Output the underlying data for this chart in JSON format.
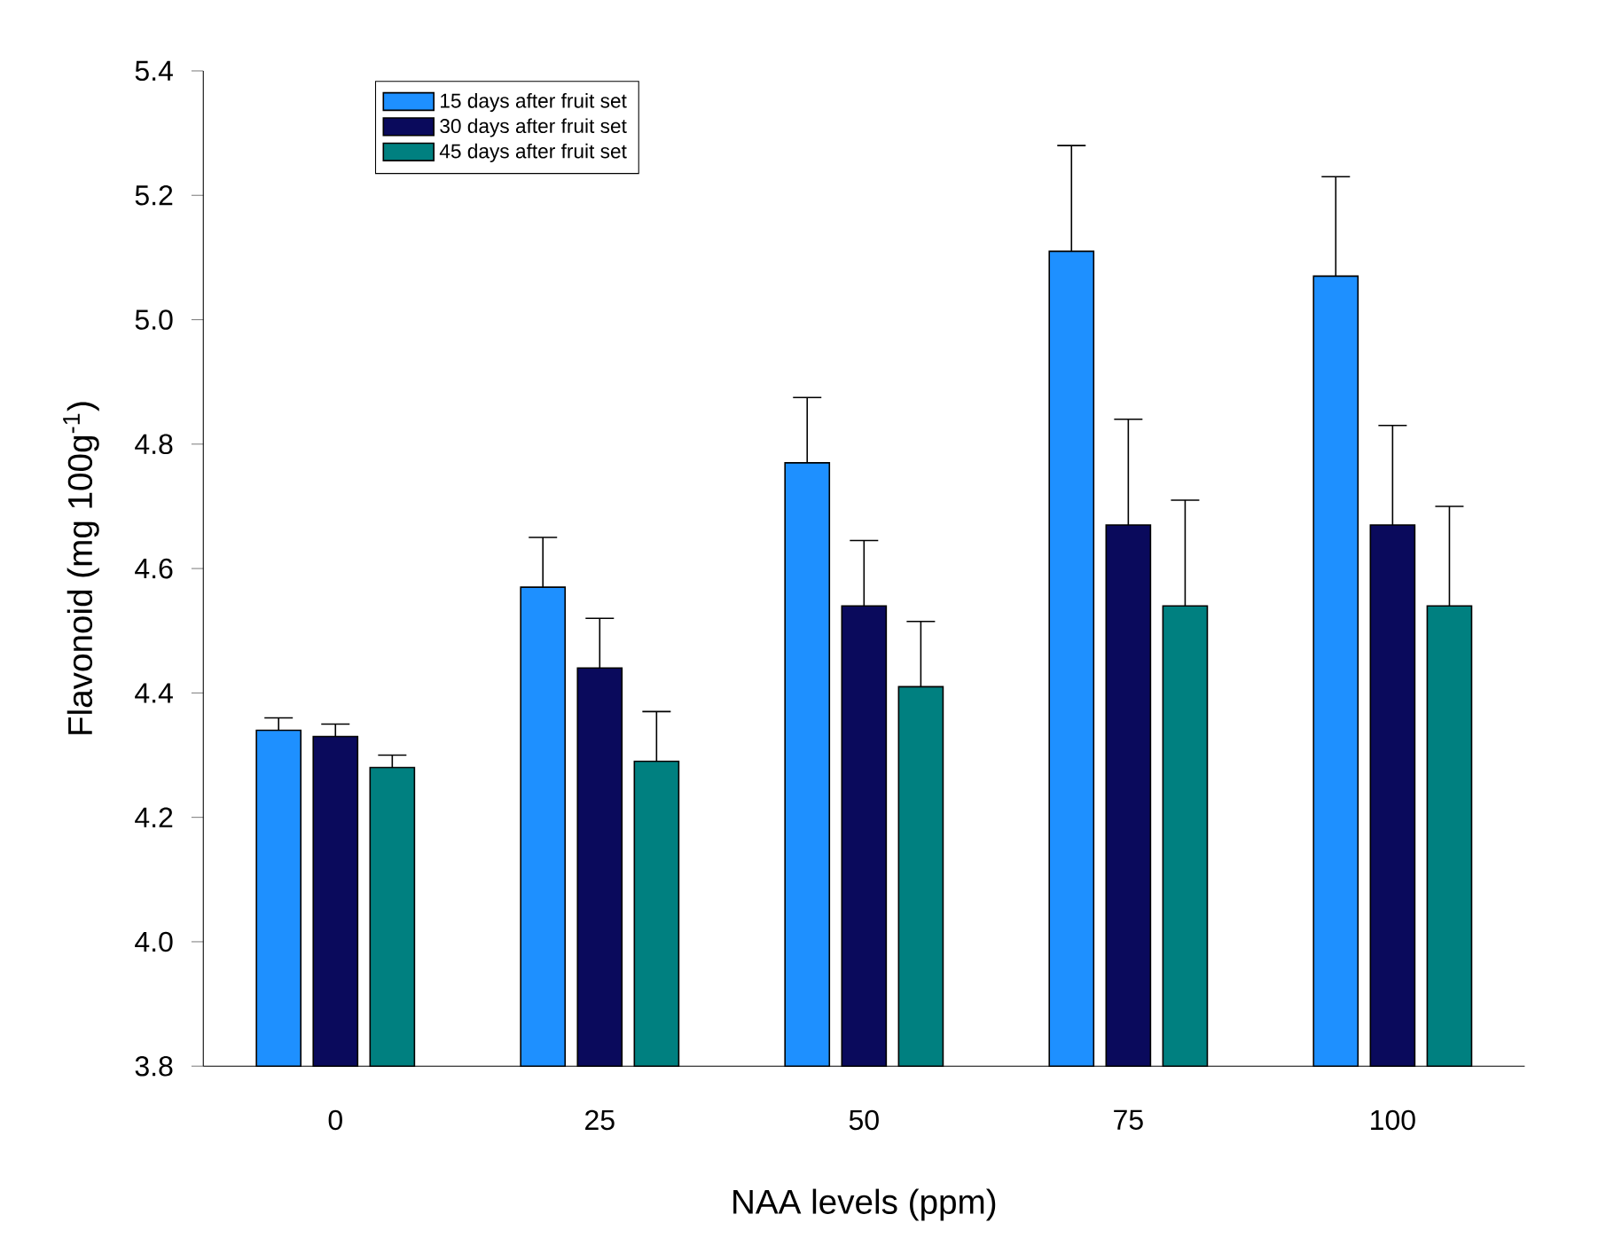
{
  "chart_data": {
    "type": "bar",
    "xlabel": "NAA levels (ppm)",
    "ylabel": "Flavonoid (mg 100g$^{-1}$)",
    "categories": [
      "0",
      "25",
      "50",
      "75",
      "100"
    ],
    "series": [
      {
        "name": "15 days after fruit set",
        "color": "#1e90ff",
        "values": [
          4.34,
          4.57,
          4.77,
          5.11,
          5.07
        ],
        "errors": [
          [
            4.34,
            4.36
          ],
          [
            4.57,
            4.65
          ],
          [
            4.77,
            4.875
          ],
          [
            5.11,
            5.28
          ],
          [
            5.07,
            5.23
          ]
        ]
      },
      {
        "name": "30 days after fruit set",
        "color": "#0a0a5c",
        "values": [
          4.33,
          4.44,
          4.54,
          4.67,
          4.67
        ],
        "errors": [
          [
            4.33,
            4.35
          ],
          [
            4.44,
            4.52
          ],
          [
            4.54,
            4.645
          ],
          [
            4.67,
            4.84
          ],
          [
            4.67,
            4.83
          ]
        ]
      },
      {
        "name": "45 days after fruit set",
        "color": "#008080",
        "values": [
          4.28,
          4.29,
          4.41,
          4.54,
          4.54
        ],
        "errors": [
          [
            4.28,
            4.3
          ],
          [
            4.29,
            4.37
          ],
          [
            4.41,
            4.515
          ],
          [
            4.54,
            4.71
          ],
          [
            4.54,
            4.7
          ]
        ]
      }
    ],
    "ylim": [
      3.8,
      5.4
    ],
    "yticks": [
      {
        "value": 3.8,
        "label": "3.8"
      },
      {
        "value": 4.0,
        "label": "4.0"
      },
      {
        "value": 4.2,
        "label": "4.2"
      },
      {
        "value": 4.4,
        "label": "4.4"
      },
      {
        "value": 4.6,
        "label": "4.6"
      },
      {
        "value": 4.8,
        "label": "4.8"
      },
      {
        "value": 5.0,
        "label": "5.0"
      },
      {
        "value": 5.2,
        "label": "5.2"
      },
      {
        "value": 5.4,
        "label": "5.4"
      }
    ],
    "legend": "top left"
  }
}
